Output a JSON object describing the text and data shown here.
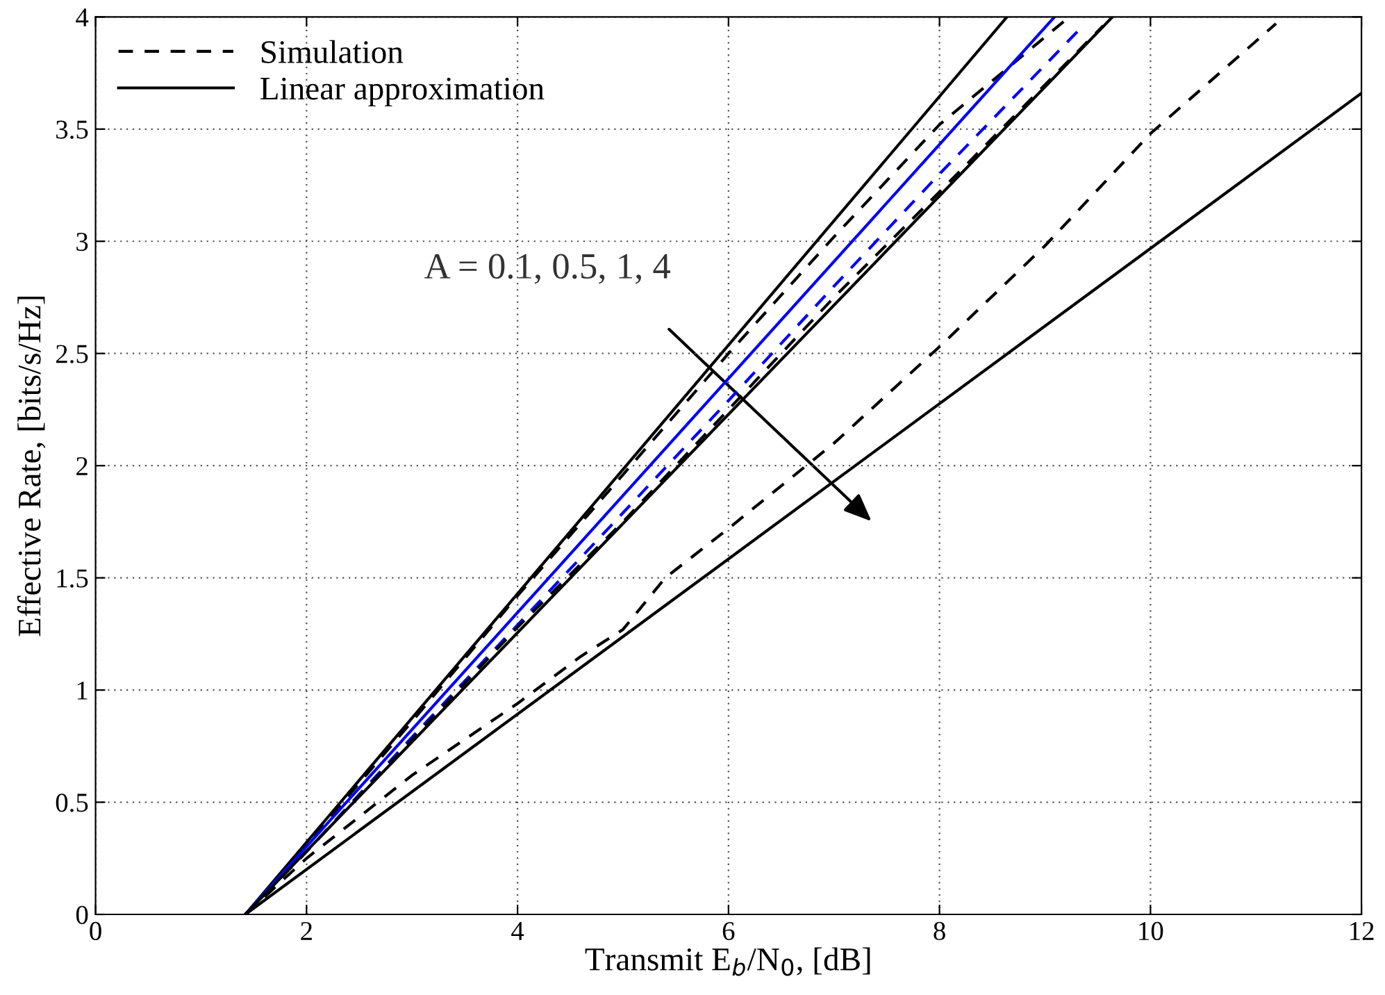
{
  "chart_data": {
    "type": "line",
    "xlabel": "Transmit E$_{b}$/N$_{0}$, [dB]",
    "ylabel": "Effective Rate, [bits/s/Hz]",
    "xlim": [
      0,
      12
    ],
    "ylim": [
      0,
      4
    ],
    "xticks": [
      0,
      2,
      4,
      6,
      8,
      10,
      12
    ],
    "yticks": [
      0,
      0.5,
      1,
      1.5,
      2,
      2.5,
      3,
      3.5,
      4
    ],
    "grid": true,
    "legend": "top left",
    "marker": "none",
    "annotations": [
      "A = 0.1, 0.5, 1, 4"
    ],
    "series": [
      {
        "name": "Simulation",
        "color": "#000000",
        "line_style": "dashed",
        "x": [
          1.42,
          2,
          3,
          4,
          5,
          6,
          7,
          8,
          9.23
        ],
        "values": [
          0,
          0.31,
          0.86,
          1.42,
          1.96,
          2.5,
          3.02,
          3.52,
          4
        ]
      },
      {
        "color": "#0000ff",
        "line_style": "dashed",
        "x": [
          1.42,
          2,
          3,
          4,
          5,
          6,
          7,
          8,
          9.36
        ],
        "values": [
          0,
          0.28,
          0.79,
          1.29,
          1.79,
          2.29,
          2.8,
          3.3,
          3.96
        ]
      },
      {
        "color": "#000000",
        "line_style": "dashed",
        "x": [
          1.42,
          2,
          3,
          4,
          5,
          5.7,
          6,
          7,
          8,
          9.55
        ],
        "values": [
          0,
          0.28,
          0.78,
          1.28,
          1.75,
          2.1,
          2.25,
          2.75,
          3.22,
          3.96
        ]
      },
      {
        "color": "#000000",
        "line_style": "dashed",
        "x": [
          1.42,
          2,
          3,
          4,
          4.6,
          5,
          5.4,
          6,
          7,
          8,
          9,
          10,
          11.19
        ],
        "values": [
          0,
          0.25,
          0.62,
          0.94,
          1.15,
          1.27,
          1.5,
          1.72,
          2.1,
          2.53,
          2.98,
          3.48,
          3.97
        ]
      },
      {
        "name": "Linear approximation",
        "color": "#000000",
        "line_style": "solid",
        "x": [
          1.42,
          8.64
        ],
        "values": [
          0,
          4
        ]
      },
      {
        "color": "#0000ff",
        "line_style": "solid",
        "x": [
          1.42,
          9.09
        ],
        "values": [
          0,
          4
        ]
      },
      {
        "color": "#000000",
        "line_style": "solid",
        "x": [
          1.42,
          9.64
        ],
        "values": [
          0,
          4
        ]
      },
      {
        "color": "#000000",
        "line_style": "solid",
        "x": [
          1.42,
          12
        ],
        "values": [
          0,
          3.66
        ]
      }
    ]
  }
}
